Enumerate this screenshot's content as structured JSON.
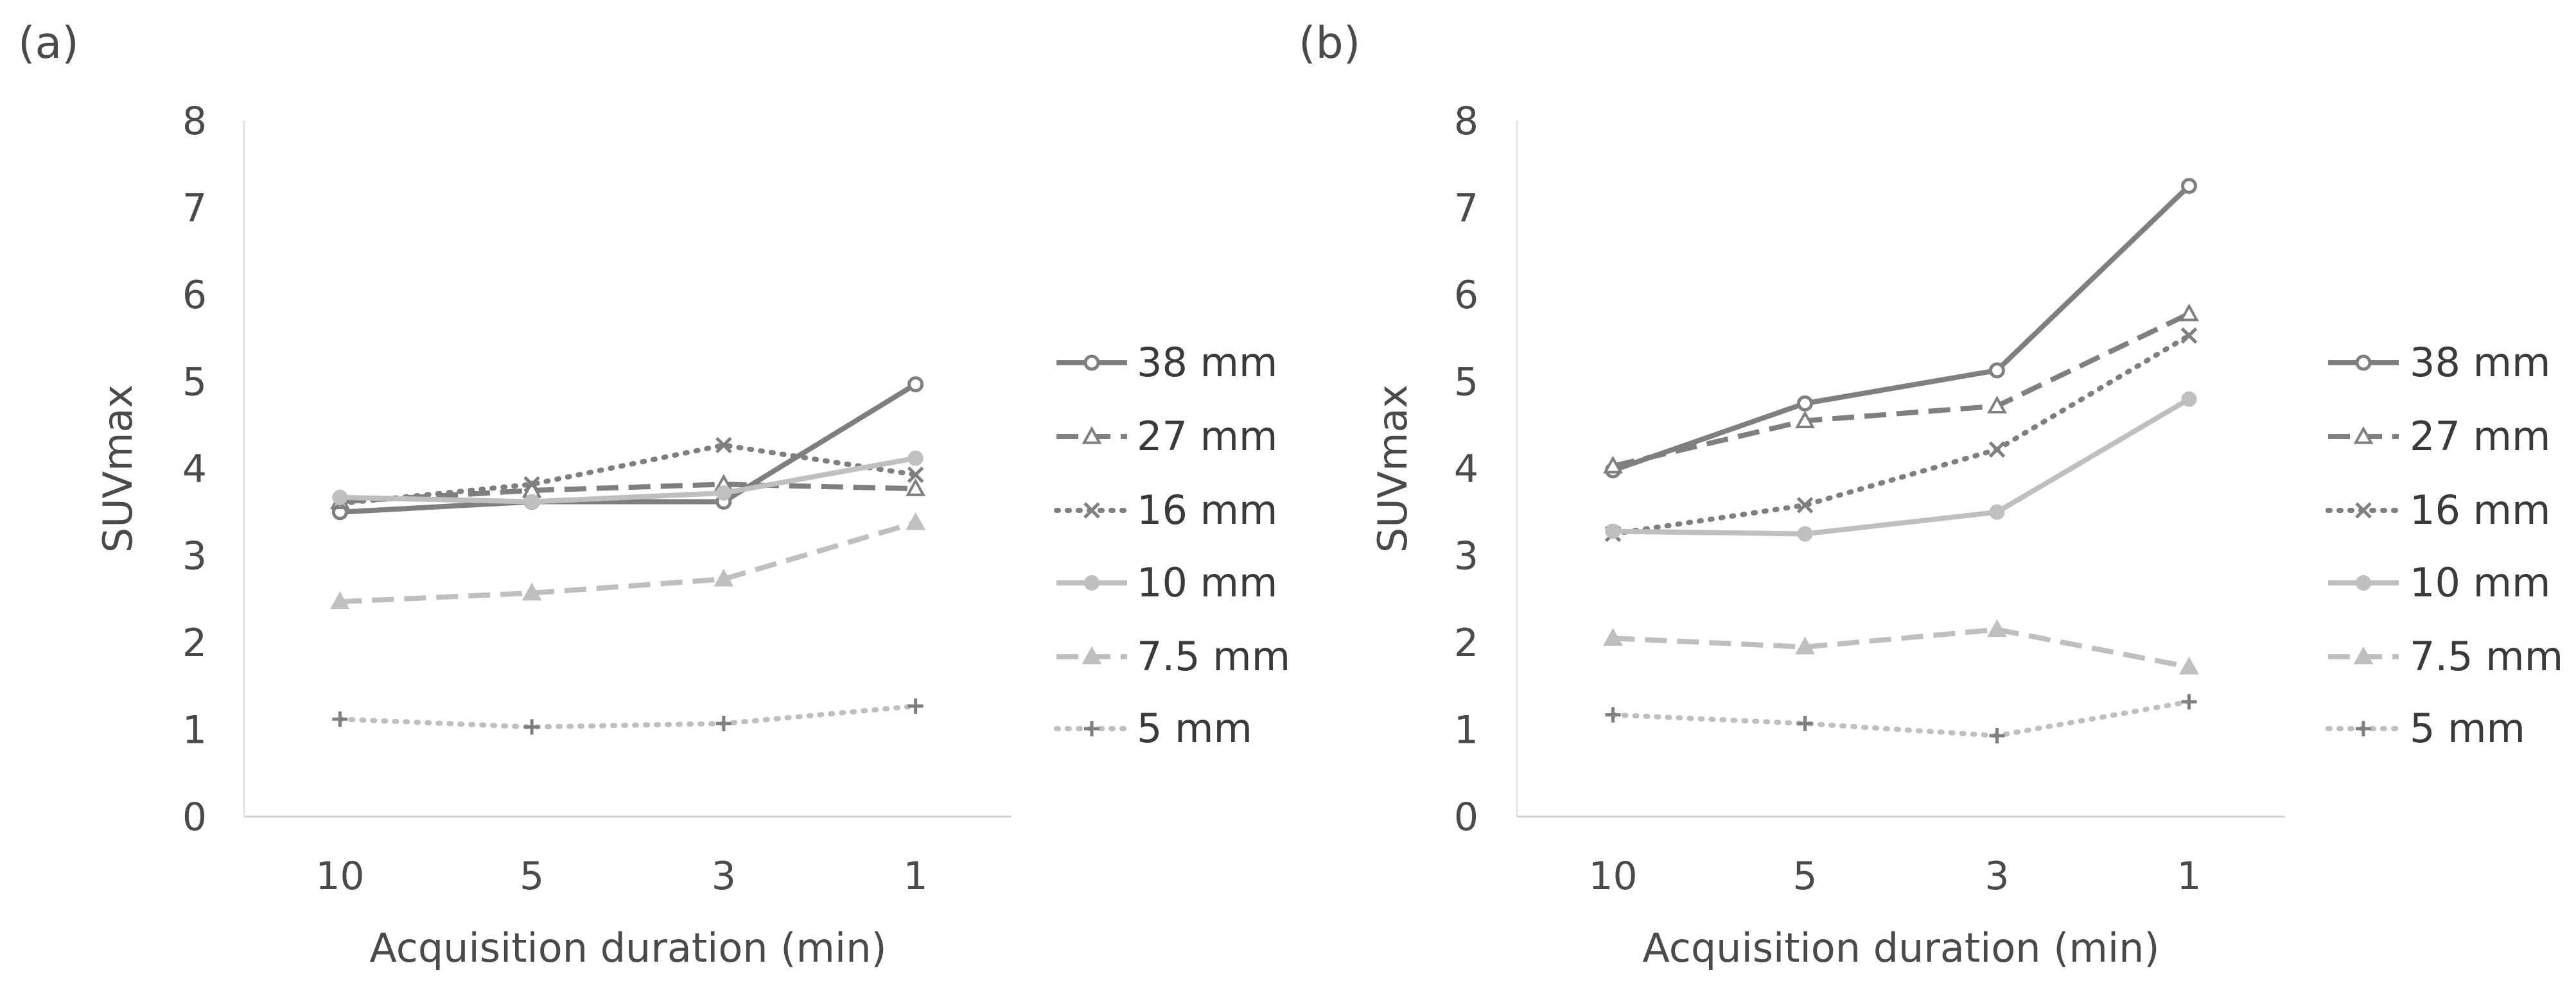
{
  "chart_data": [
    {
      "type": "line",
      "panel_label": "(a)",
      "categories": [
        "10",
        "5",
        "3",
        "1"
      ],
      "xlabel": "Acquisition duration (min)",
      "ylabel": "SUVmax",
      "ylim": [
        0,
        8
      ],
      "yticks": [
        "0",
        "1",
        "2",
        "3",
        "4",
        "5",
        "6",
        "7",
        "8"
      ],
      "grid": false,
      "legend_position": "right",
      "series": [
        {
          "name": "38 mm",
          "values": [
            3.5,
            3.62,
            3.62,
            4.97
          ],
          "color": "#7f7f7f",
          "dash": "solid",
          "marker": "open-circle"
        },
        {
          "name": "27 mm",
          "values": [
            3.62,
            3.75,
            3.82,
            3.77
          ],
          "color": "#7f7f7f",
          "dash": "dashed",
          "marker": "open-triangle"
        },
        {
          "name": "16 mm",
          "values": [
            3.6,
            3.82,
            4.27,
            3.93
          ],
          "color": "#7f7f7f",
          "dash": "dotted",
          "marker": "x"
        },
        {
          "name": "10 mm",
          "values": [
            3.67,
            3.62,
            3.72,
            4.12
          ],
          "color": "#bfbfbf",
          "dash": "solid",
          "marker": "filled-circle"
        },
        {
          "name": "7.5 mm",
          "values": [
            2.47,
            2.57,
            2.73,
            3.38
          ],
          "color": "#bfbfbf",
          "dash": "dashed",
          "marker": "filled-triangle"
        },
        {
          "name": "5 mm",
          "values": [
            1.12,
            1.03,
            1.07,
            1.27
          ],
          "color": "#bfbfbf",
          "dash": "dotted",
          "marker": "plus"
        }
      ]
    },
    {
      "type": "line",
      "panel_label": "(b)",
      "categories": [
        "10",
        "5",
        "3",
        "1"
      ],
      "xlabel": "Acquisition duration (min)",
      "ylabel": "SUVmax",
      "ylim": [
        0,
        8
      ],
      "yticks": [
        "0",
        "1",
        "2",
        "3",
        "4",
        "5",
        "6",
        "7",
        "8"
      ],
      "grid": false,
      "legend_position": "right",
      "series": [
        {
          "name": "38 mm",
          "values": [
            3.98,
            4.75,
            5.13,
            7.25
          ],
          "color": "#7f7f7f",
          "dash": "solid",
          "marker": "open-circle"
        },
        {
          "name": "27 mm",
          "values": [
            4.03,
            4.55,
            4.72,
            5.78
          ],
          "color": "#7f7f7f",
          "dash": "dashed",
          "marker": "open-triangle"
        },
        {
          "name": "16 mm",
          "values": [
            3.25,
            3.58,
            4.22,
            5.53
          ],
          "color": "#7f7f7f",
          "dash": "dotted",
          "marker": "x"
        },
        {
          "name": "10 mm",
          "values": [
            3.28,
            3.25,
            3.5,
            4.8
          ],
          "color": "#bfbfbf",
          "dash": "solid",
          "marker": "filled-circle"
        },
        {
          "name": "7.5 mm",
          "values": [
            2.05,
            1.95,
            2.15,
            1.72
          ],
          "color": "#bfbfbf",
          "dash": "dashed",
          "marker": "filled-triangle"
        },
        {
          "name": "5 mm",
          "values": [
            1.17,
            1.07,
            0.93,
            1.32
          ],
          "color": "#bfbfbf",
          "dash": "dotted",
          "marker": "plus"
        }
      ]
    }
  ]
}
